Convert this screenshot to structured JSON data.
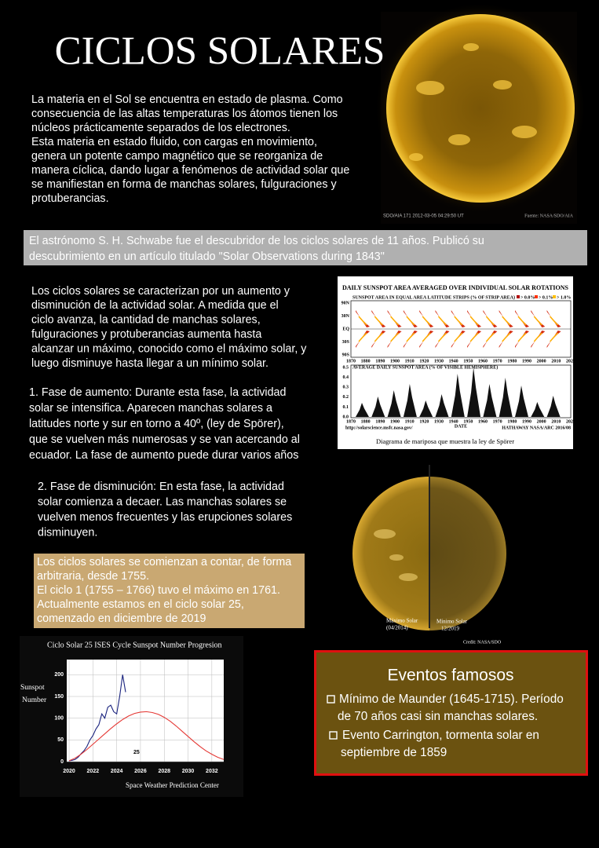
{
  "header": {
    "title": "CICLOS SOLARES"
  },
  "intro": {
    "lines": [
      "La materia en el Sol se encuentra en estado de plasma. Como",
      "consecuencia de las altas temperaturas los átomos tienen los",
      "núcleos prácticamente separados de los electrones.",
      "Esta materia en estado fluido, con cargas en movimiento,",
      "genera un potente campo magnético que se reorganiza de",
      "manera cíclica, dando lugar a fenómenos de actividad solar que",
      "se manifiestan en forma de manchas solares, fulguraciones y",
      "protuberancias."
    ]
  },
  "sun_image": {
    "caption_left": "SDO/AIA   171     2012-03-05  04:29:50  UT",
    "caption_right": "Fuente: NASA/SDO/AIA"
  },
  "schwabe": {
    "lines": [
      "El astrónomo S. H. Schwabe fue el descubridor de los ciclos solares de 11 años. Publicó su",
      "descubrimiento en un artículo titulado \"Solar Observations during 1843\""
    ]
  },
  "cycles": {
    "lines": [
      "Los ciclos solares se caracterizan por un aumento y",
      "disminución de la actividad solar.  A medida que el",
      "ciclo avanza, la cantidad de manchas solares,",
      "fulguraciones y protuberancias aumenta hasta",
      "alcanzar un máximo, conocido como el máximo solar, y",
      "luego disminuye hasta llegar a un mínimo solar."
    ]
  },
  "phase_increase": {
    "lines": [
      "1. Fase de aumento: Durante esta fase, la actividad",
      "solar se intensifica. Aparecen manchas solares a",
      "latitudes norte y sur en torno a 40º, (ley de Spörer),",
      "que se vuelven más numerosas y se van acercando al",
      "ecuador. La fase de aumento puede durar varios años"
    ]
  },
  "phase_decrease": {
    "lines": [
      "2. Fase de disminución: En esta fase, la actividad",
      "solar comienza a decaer. Las manchas solares se",
      "vuelven menos frecuentes y las erupciones solares",
      "disminuyen."
    ]
  },
  "history": {
    "lines": [
      "Los ciclos solares se comienzan a contar, de forma",
      "arbitraria, desde 1755.",
      "El ciclo 1  (1755 – 1766)  tuvo el máximo en 1761.",
      "Actualmente estamos en el ciclo solar 25,",
      "comenzado en diciembre de 2019"
    ]
  },
  "butterfly": {
    "title": "DAILY SUNSPOT AREA AVERAGED OVER INDIVIDUAL SOLAR ROTATIONS",
    "upper_label": "SUNSPOT AREA IN EQUAL AREA LATITUDE STRIPS (% OF STRIP AREA)",
    "legend": [
      "> 0.0%",
      "> 0.1%",
      "> 1.0%"
    ],
    "latitudes": [
      "90N",
      "30N",
      "EQ",
      "30S",
      "90S"
    ],
    "lower_label": "AVERAGE DAILY SUNSPOT AREA (% OF VISIBLE HEMISPHERE)",
    "lower_ticks": [
      "0.5",
      "0.4",
      "0.3",
      "0.2",
      "0.1",
      "0.0"
    ],
    "years": [
      "1870",
      "1880",
      "1890",
      "1900",
      "1910",
      "1920",
      "1930",
      "1940",
      "1950",
      "1960",
      "1970",
      "1980",
      "1990",
      "2000",
      "2010",
      "2020"
    ],
    "date_label": "DATE",
    "url": "http://solarscience.msfc.nasa.gov/",
    "credit": "HATHAWAY  NASA/ARC  2016/08",
    "caption": "Diagrama de mariposa que muestra la ley de Spörer"
  },
  "max_min": {
    "max_label": "Máximo Solar",
    "max_date": "(04/2014)",
    "min_label": "Mínimo Solar",
    "min_date": "12/2019",
    "credit": "Credit: NASA/SDO"
  },
  "chart_data": {
    "type": "line",
    "title": "Ciclo Solar 25  ISES Cycle Sunspot Number Progresion",
    "y_label": [
      "Sunspot",
      "Number"
    ],
    "source": "Space Weather Prediction Center",
    "annotation": "25",
    "xlim": [
      2019.8,
      2033
    ],
    "ylim": [
      0,
      235
    ],
    "xticks": [
      2020,
      2022,
      2024,
      2026,
      2028,
      2030,
      2032
    ],
    "yticks": [
      0,
      50,
      100,
      150,
      200
    ],
    "grid": true,
    "series": [
      {
        "color": "#1a237e",
        "x": [
          2020,
          2020.25,
          2020.5,
          2020.75,
          2021,
          2021.25,
          2021.5,
          2021.75,
          2022,
          2022.25,
          2022.5,
          2022.75,
          2023,
          2023.25,
          2023.5,
          2023.75,
          2024,
          2024.25,
          2024.5,
          2024.75
        ],
        "values": [
          2,
          3,
          5,
          10,
          18,
          25,
          35,
          50,
          60,
          75,
          85,
          110,
          100,
          125,
          130,
          115,
          110,
          150,
          200,
          160
        ]
      },
      {
        "color": "#e53935",
        "x": [
          2020,
          2020.5,
          2021,
          2021.5,
          2022,
          2022.5,
          2023,
          2023.5,
          2024,
          2024.5,
          2025,
          2025.5,
          2026,
          2026.5,
          2027,
          2027.5,
          2028,
          2028.5,
          2029,
          2029.5,
          2030,
          2030.5,
          2031,
          2031.5,
          2032,
          2032.5,
          2033
        ],
        "values": [
          2,
          8,
          17,
          28,
          40,
          52,
          64,
          76,
          87,
          97,
          105,
          111,
          114,
          115,
          113,
          109,
          102,
          93,
          82,
          70,
          58,
          46,
          35,
          25,
          17,
          10,
          5
        ]
      }
    ]
  },
  "events": {
    "title": "Eventos famosos",
    "items": [
      {
        "lines": [
          "Mínimo de Maunder (1645-1715). Período",
          "de 70 años casi sin manchas solares."
        ]
      },
      {
        "lines": [
          "Evento Carrington, tormenta solar en",
          "septiembre de 1859"
        ]
      }
    ]
  }
}
